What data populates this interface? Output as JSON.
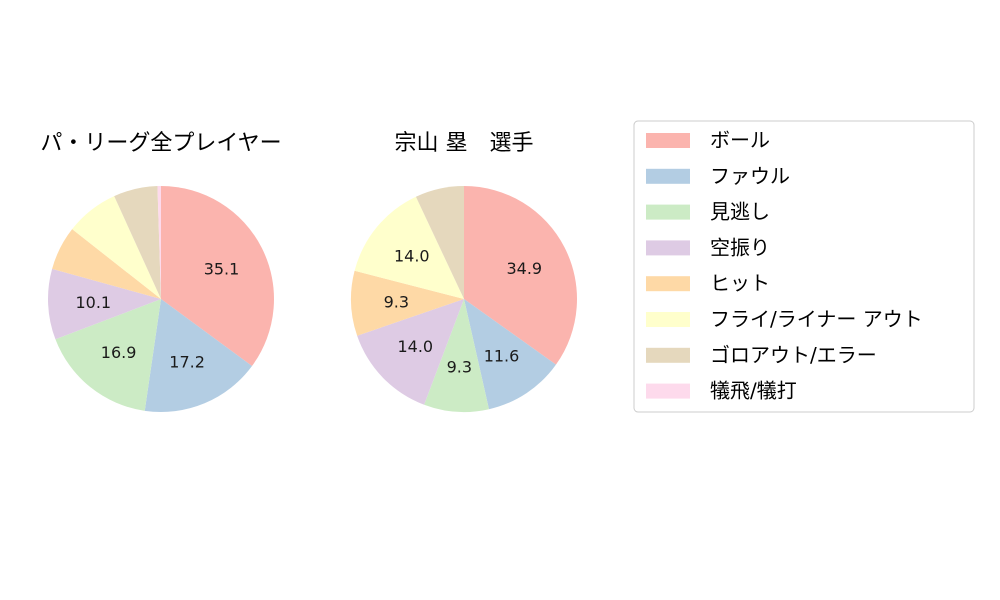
{
  "legend": {
    "items": [
      {
        "label": "ボール",
        "color": "#fbb4ae"
      },
      {
        "label": "ファウル",
        "color": "#b3cde3"
      },
      {
        "label": "見逃し",
        "color": "#ccebc5"
      },
      {
        "label": "空振り",
        "color": "#decbe4"
      },
      {
        "label": "ヒット",
        "color": "#fed9a6"
      },
      {
        "label": "フライ/ライナー アウト",
        "color": "#ffffcc"
      },
      {
        "label": "ゴロアウト/エラー",
        "color": "#e5d8bd"
      },
      {
        "label": "犠飛/犠打",
        "color": "#fddaec"
      }
    ],
    "placement": "right"
  },
  "chart_data": [
    {
      "type": "pie",
      "title": "パ・リーグ全プレイヤー",
      "categories": [
        "ボール",
        "ファウル",
        "見逃し",
        "空振り",
        "ヒット",
        "フライ/ライナー アウト",
        "ゴロアウト/エラー",
        "犠飛/犠打"
      ],
      "values": [
        35.1,
        17.2,
        16.9,
        10.1,
        6.3,
        7.6,
        6.3,
        0.5
      ],
      "labels": [
        "35.1",
        "17.2",
        "16.9",
        "10.1",
        "",
        "",
        "",
        ""
      ],
      "start_angle": 90,
      "direction": "clockwise"
    },
    {
      "type": "pie",
      "title": "宗山 塁　選手",
      "categories": [
        "ボール",
        "ファウル",
        "見逃し",
        "空振り",
        "ヒット",
        "フライ/ライナー アウト",
        "ゴロアウト/エラー",
        "犠飛/犠打"
      ],
      "values": [
        34.9,
        11.6,
        9.3,
        14.0,
        9.3,
        14.0,
        7.0,
        0
      ],
      "labels": [
        "34.9",
        "11.6",
        "9.3",
        "14.0",
        "9.3",
        "14.0",
        "",
        ""
      ],
      "start_angle": 90,
      "direction": "clockwise"
    }
  ]
}
